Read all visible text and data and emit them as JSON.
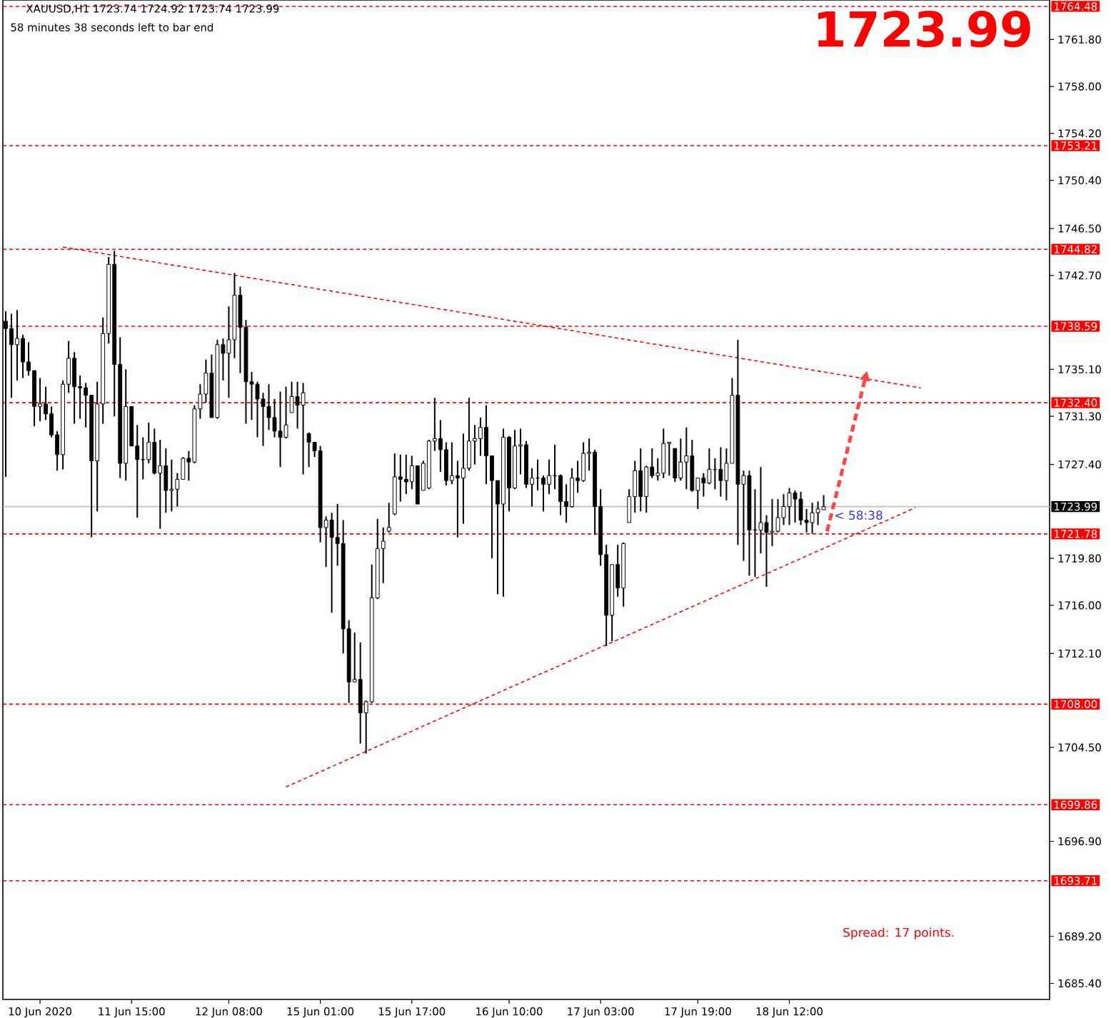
{
  "chart_data": {
    "type": "candlestick",
    "title": "1723.99",
    "subtitle": "XAUUSD,H1  1723.74 1724.92 1723.74 1723.99",
    "annotations": [
      "58 minutes 38 seconds left to bar end",
      {
        "text": "< 58:38",
        "y": 1723.99
      },
      "Spread: 17 points."
    ],
    "categories": [
      null,
      null,
      null,
      null,
      null,
      null,
      "10 Jun 2020",
      null,
      null,
      null,
      null,
      null,
      null,
      null,
      null,
      null,
      null,
      null,
      null,
      null,
      null,
      null,
      "11 Jun 15:00",
      null,
      null,
      null,
      null,
      null,
      null,
      null,
      null,
      null,
      null,
      null,
      null,
      null,
      null,
      null,
      null,
      "12 Jun 08:00",
      null,
      null,
      null,
      null,
      null,
      null,
      null,
      null,
      null,
      null,
      null,
      null,
      null,
      null,
      null,
      "15 Jun 01:00",
      null,
      null,
      null,
      null,
      null,
      null,
      null,
      null,
      null,
      null,
      null,
      null,
      null,
      null,
      null,
      "15 Jun 17:00",
      null,
      null,
      null,
      null,
      null,
      null,
      null,
      null,
      null,
      null,
      null,
      null,
      null,
      null,
      null,
      null,
      "16 Jun 10:00",
      null,
      null,
      null,
      null,
      null,
      null,
      null,
      null,
      null,
      null,
      null,
      null,
      null,
      null,
      null,
      "17 Jun 03:00",
      null,
      null,
      null,
      null,
      null,
      null,
      null,
      null,
      null,
      null,
      null,
      null,
      null,
      null,
      null,
      null,
      "17 Jun 19:00",
      null,
      null,
      null,
      null,
      null,
      null,
      null,
      null,
      null,
      null,
      null,
      null,
      null,
      null,
      null,
      "18 Jun 12:00",
      null,
      null,
      null,
      null,
      null,
      null,
      null,
      null,
      null,
      null,
      null,
      null,
      null,
      null,
      null,
      null,
      null,
      null,
      null,
      null,
      null,
      null,
      null,
      null,
      null,
      null,
      null,
      null,
      null,
      null,
      null,
      null,
      null,
      null,
      null,
      null,
      null,
      null,
      null,
      null,
      null,
      null,
      null,
      null,
      null
    ],
    "color": "#000000",
    "ohlc": [
      [
        1739.0,
        1739.8,
        1726.4,
        1738.4
      ],
      [
        1738.4,
        1739.6,
        1732.8,
        1737.1
      ],
      [
        1737.1,
        1739.9,
        1734.2,
        1737.6
      ],
      [
        1737.6,
        1737.9,
        1734.4,
        1735.7
      ],
      [
        1735.7,
        1737.3,
        1734.6,
        1735.0
      ],
      [
        1735.0,
        1735.0,
        1730.5,
        1732.1
      ],
      [
        1732.1,
        1734.4,
        1730.9,
        1732.3
      ],
      [
        1732.3,
        1733.7,
        1731.0,
        1731.5
      ],
      [
        1731.5,
        1732.1,
        1729.6,
        1729.8
      ],
      [
        1729.8,
        1730.1,
        1726.9,
        1728.2
      ],
      [
        1728.2,
        1734.2,
        1727.0,
        1733.9
      ],
      [
        1733.9,
        1737.4,
        1733.2,
        1736.0
      ],
      [
        1736.0,
        1736.5,
        1730.7,
        1733.7
      ],
      [
        1733.7,
        1734.6,
        1731.1,
        1733.6
      ],
      [
        1733.6,
        1734.0,
        1730.4,
        1733.0
      ],
      [
        1733.0,
        1733.0,
        1721.5,
        1727.7
      ],
      [
        1727.7,
        1734.1,
        1723.6,
        1732.3
      ],
      [
        1732.3,
        1739.3,
        1730.7,
        1738.0
      ],
      [
        1738.0,
        1744.2,
        1737.2,
        1743.6
      ],
      [
        1743.6,
        1744.7,
        1731.3,
        1735.5
      ],
      [
        1735.5,
        1737.7,
        1726.3,
        1727.5
      ],
      [
        1727.5,
        1735.1,
        1726.1,
        1732.1
      ],
      [
        1732.1,
        1732.1,
        1728.9,
        1728.9
      ],
      [
        1728.9,
        1730.6,
        1723.1,
        1727.8
      ],
      [
        1727.8,
        1729.6,
        1726.2,
        1727.8
      ],
      [
        1727.8,
        1730.8,
        1727.5,
        1729.2
      ],
      [
        1729.2,
        1730.3,
        1726.6,
        1726.7
      ],
      [
        1726.7,
        1729.4,
        1722.2,
        1727.3
      ],
      [
        1727.3,
        1728.7,
        1723.5,
        1725.3
      ],
      [
        1725.3,
        1727.8,
        1723.6,
        1725.4
      ],
      [
        1725.4,
        1726.7,
        1724.0,
        1726.2
      ],
      [
        1726.2,
        1728.0,
        1726.2,
        1727.9
      ],
      [
        1727.9,
        1728.5,
        1726.1,
        1727.6
      ],
      [
        1727.6,
        1732.2,
        1727.5,
        1731.9
      ],
      [
        1731.9,
        1733.9,
        1731.1,
        1733.1
      ],
      [
        1733.1,
        1735.9,
        1732.4,
        1734.8
      ],
      [
        1734.8,
        1736.3,
        1731.2,
        1731.2
      ],
      [
        1731.2,
        1737.5,
        1731.1,
        1737.1
      ],
      [
        1737.1,
        1737.6,
        1734.2,
        1736.4
      ],
      [
        1736.4,
        1740.2,
        1732.8,
        1737.5
      ],
      [
        1737.5,
        1742.9,
        1736.0,
        1741.1
      ],
      [
        1741.1,
        1741.8,
        1734.8,
        1738.5
      ],
      [
        1738.5,
        1739.1,
        1730.7,
        1734.1
      ],
      [
        1734.1,
        1734.9,
        1731.0,
        1733.9
      ],
      [
        1733.9,
        1734.1,
        1729.6,
        1732.7
      ],
      [
        1732.7,
        1733.2,
        1728.9,
        1732.1
      ],
      [
        1732.1,
        1733.9,
        1730.2,
        1731.2
      ],
      [
        1731.2,
        1732.7,
        1729.6,
        1730.1
      ],
      [
        1730.1,
        1733.3,
        1727.2,
        1729.6
      ],
      [
        1729.6,
        1733.7,
        1729.5,
        1730.6
      ],
      [
        1731.6,
        1734.1,
        1731.6,
        1732.9
      ],
      [
        1732.9,
        1734.1,
        1730.3,
        1732.2
      ],
      [
        1732.2,
        1734.0,
        1726.6,
        1733.2
      ],
      [
        1729.9,
        1730.0,
        1727.2,
        1729.2
      ],
      [
        1729.2,
        1729.2,
        1728.0,
        1728.5
      ],
      [
        1728.5,
        1728.9,
        1721.1,
        1722.3
      ],
      [
        1722.3,
        1723.2,
        1719.1,
        1722.9
      ],
      [
        1722.9,
        1723.5,
        1715.4,
        1721.5
      ],
      [
        1721.5,
        1724.2,
        1719.2,
        1721.0
      ],
      [
        1721.0,
        1722.9,
        1712.1,
        1714.1
      ],
      [
        1714.1,
        1714.8,
        1708.1,
        1709.8
      ],
      [
        1709.8,
        1713.8,
        1709.8,
        1710.0
      ],
      [
        1710.0,
        1713.0,
        1704.8,
        1707.3
      ],
      [
        1707.3,
        1708.3,
        1704.0,
        1708.2
      ],
      [
        1708.2,
        1719.3,
        1708.1,
        1716.6
      ],
      [
        1716.6,
        1723.0,
        1716.5,
        1720.6
      ],
      [
        1720.6,
        1722.3,
        1717.8,
        1721.2
      ],
      [
        1722.0,
        1724.3,
        1721.9,
        1722.3
      ],
      [
        1723.4,
        1728.3,
        1723.3,
        1726.4
      ],
      [
        1726.4,
        1728.2,
        1724.4,
        1726.2
      ],
      [
        1726.2,
        1728.2,
        1725.0,
        1726.0
      ],
      [
        1726.0,
        1728.1,
        1725.4,
        1727.3
      ],
      [
        1727.3,
        1727.3,
        1724.2,
        1724.2
      ],
      [
        1725.3,
        1727.7,
        1725.3,
        1727.5
      ],
      [
        1725.5,
        1729.4,
        1725.4,
        1729.3
      ],
      [
        1729.3,
        1732.8,
        1728.5,
        1729.5
      ],
      [
        1729.5,
        1731.0,
        1726.8,
        1728.6
      ],
      [
        1728.6,
        1729.2,
        1725.7,
        1726.1
      ],
      [
        1726.1,
        1729.2,
        1725.8,
        1726.5
      ],
      [
        1726.5,
        1727.7,
        1721.5,
        1726.3
      ],
      [
        1726.3,
        1729.9,
        1722.6,
        1727.1
      ],
      [
        1727.1,
        1732.8,
        1726.9,
        1729.3
      ],
      [
        1729.3,
        1730.6,
        1727.4,
        1729.5
      ],
      [
        1729.5,
        1731.2,
        1728.1,
        1730.4
      ],
      [
        1730.4,
        1732.2,
        1725.8,
        1728.1
      ],
      [
        1728.1,
        1728.1,
        1719.8,
        1726.1
      ],
      [
        1726.1,
        1726.1,
        1716.9,
        1724.2
      ],
      [
        1724.2,
        1730.3,
        1716.7,
        1729.6
      ],
      [
        1729.6,
        1729.7,
        1723.6,
        1725.5
      ],
      [
        1725.5,
        1730.2,
        1725.4,
        1728.9
      ],
      [
        1728.9,
        1730.3,
        1726.6,
        1729.0
      ],
      [
        1729.0,
        1729.3,
        1725.5,
        1725.8
      ],
      [
        1725.8,
        1727.1,
        1724.0,
        1726.3
      ],
      [
        1726.3,
        1727.8,
        1725.3,
        1726.3
      ],
      [
        1726.3,
        1726.5,
        1723.6,
        1725.8
      ],
      [
        1725.8,
        1727.8,
        1725.0,
        1726.5
      ],
      [
        1726.5,
        1729.0,
        1725.4,
        1726.5
      ],
      [
        1726.5,
        1726.6,
        1723.3,
        1724.4
      ],
      [
        1724.4,
        1725.8,
        1722.7,
        1724.0
      ],
      [
        1724.0,
        1727.1,
        1723.9,
        1726.3
      ],
      [
        1726.3,
        1727.7,
        1725.1,
        1726.1
      ],
      [
        1726.1,
        1729.2,
        1726.0,
        1728.3
      ],
      [
        1728.3,
        1729.5,
        1726.9,
        1728.4
      ],
      [
        1728.4,
        1728.6,
        1721.7,
        1724.0
      ],
      [
        1724.0,
        1725.4,
        1719.2,
        1720.1
      ],
      [
        1720.1,
        1720.9,
        1712.7,
        1715.2
      ],
      [
        1715.2,
        1719.3,
        1713.1,
        1719.3
      ],
      [
        1719.3,
        1720.9,
        1716.7,
        1717.4
      ],
      [
        1717.4,
        1721.1,
        1715.9,
        1721.0
      ],
      [
        1722.7,
        1725.4,
        1722.7,
        1724.8
      ],
      [
        1724.8,
        1727.7,
        1723.5,
        1726.9
      ],
      [
        1726.9,
        1728.7,
        1723.6,
        1724.8
      ],
      [
        1724.8,
        1727.3,
        1723.5,
        1727.2
      ],
      [
        1727.2,
        1728.7,
        1726.3,
        1726.5
      ],
      [
        1726.5,
        1727.9,
        1726.1,
        1726.7
      ],
      [
        1726.7,
        1730.3,
        1726.3,
        1729.1
      ],
      [
        1729.1,
        1729.2,
        1726.5,
        1729.2
      ],
      [
        1728.7,
        1728.7,
        1726.0,
        1726.3
      ],
      [
        1726.3,
        1729.5,
        1726.1,
        1727.6
      ],
      [
        1727.6,
        1730.4,
        1725.4,
        1728.1
      ],
      [
        1728.1,
        1729.4,
        1725.2,
        1725.3
      ],
      [
        1725.3,
        1726.3,
        1723.8,
        1726.3
      ],
      [
        1726.3,
        1726.7,
        1724.8,
        1725.9
      ],
      [
        1725.9,
        1728.7,
        1725.8,
        1727.0
      ],
      [
        1727.0,
        1727.9,
        1725.4,
        1727.0
      ],
      [
        1727.0,
        1728.8,
        1724.8,
        1726.1
      ],
      [
        1726.1,
        1728.7,
        1724.5,
        1727.5
      ],
      [
        1727.5,
        1734.4,
        1727.5,
        1733.0
      ],
      [
        1733.0,
        1737.5,
        1720.9,
        1725.8
      ],
      [
        1725.8,
        1726.9,
        1719.6,
        1726.5
      ],
      [
        1726.5,
        1726.9,
        1718.4,
        1722.1
      ],
      [
        1722.1,
        1725.4,
        1718.3,
        1722.1
      ],
      [
        1722.1,
        1727.2,
        1720.2,
        1722.7
      ],
      [
        1722.7,
        1723.3,
        1717.5,
        1721.9
      ],
      [
        1721.9,
        1724.6,
        1720.8,
        1722.0
      ],
      [
        1722.0,
        1724.6,
        1721.9,
        1723.1
      ],
      [
        1723.1,
        1725.0,
        1722.5,
        1724.0
      ],
      [
        1724.0,
        1725.5,
        1722.5,
        1725.1
      ],
      [
        1725.1,
        1725.3,
        1722.7,
        1724.6
      ],
      [
        1724.6,
        1725.2,
        1722.5,
        1722.9
      ],
      [
        1722.9,
        1723.8,
        1721.9,
        1722.7
      ],
      [
        1722.7,
        1724.3,
        1721.8,
        1723.5
      ],
      [
        1723.5,
        1724.4,
        1722.5,
        1723.8
      ],
      [
        1723.74,
        1724.92,
        1723.74,
        1723.99
      ],
      null,
      null,
      null,
      null,
      null,
      null,
      null,
      null,
      null,
      null,
      null,
      null,
      null,
      null,
      null,
      null,
      null,
      null,
      null,
      null,
      null,
      null,
      null,
      null,
      null,
      null,
      null,
      null,
      null,
      null,
      null,
      null,
      null,
      null,
      null,
      null,
      null,
      null,
      null
    ],
    "series": [
      {
        "type": "line",
        "color": "#ff0000",
        "line_style": "dashed",
        "values": [
          null,
          null,
          null,
          null,
          null,
          null,
          null,
          null,
          null,
          null,
          1745.0,
          null,
          null,
          null,
          null,
          null,
          null,
          null,
          null,
          null,
          null,
          null,
          null,
          null,
          null,
          null,
          null,
          null,
          null,
          null,
          null,
          null,
          null,
          null,
          null,
          null,
          null,
          null,
          null,
          null,
          null,
          null,
          null,
          null,
          null,
          null,
          null,
          null,
          null,
          null,
          null,
          null,
          null,
          null,
          null,
          null,
          null,
          null,
          null,
          null,
          null,
          null,
          null,
          null,
          null,
          null,
          null,
          null,
          null,
          null,
          null,
          null,
          null,
          null,
          null,
          null,
          null,
          null,
          null,
          null,
          null,
          null,
          null,
          null,
          null,
          null,
          null,
          null,
          null,
          null,
          null,
          null,
          null,
          null,
          null,
          null,
          null,
          null,
          null,
          null,
          null,
          null,
          null,
          null,
          null,
          null,
          null,
          null,
          null,
          null,
          null,
          null,
          null,
          null,
          null,
          null,
          null,
          null,
          null,
          null,
          null,
          null,
          null,
          null,
          null,
          null,
          null,
          null,
          null,
          null,
          null,
          null,
          null,
          null,
          null,
          null,
          null,
          null,
          null,
          null,
          null,
          null,
          null,
          null,
          null,
          null,
          null,
          null,
          null,
          null,
          null,
          null,
          null,
          null,
          null,
          null,
          null,
          null,
          null,
          null,
          1733.6,
          null,
          null,
          null,
          null,
          null,
          null,
          null,
          null,
          null,
          null,
          null,
          null,
          null,
          null,
          null,
          null,
          null,
          null,
          null,
          null,
          null,
          null
        ]
      },
      {
        "type": "line",
        "color": "#ff0000",
        "line_style": "dashed",
        "values": [
          null,
          null,
          null,
          null,
          null,
          null,
          null,
          null,
          null,
          null,
          null,
          null,
          null,
          null,
          null,
          null,
          null,
          null,
          null,
          null,
          null,
          null,
          null,
          null,
          null,
          null,
          null,
          null,
          null,
          null,
          null,
          null,
          null,
          null,
          null,
          null,
          null,
          null,
          null,
          null,
          null,
          null,
          null,
          null,
          null,
          null,
          null,
          null,
          null,
          1701.3,
          null,
          null,
          null,
          null,
          null,
          null,
          null,
          null,
          null,
          null,
          null,
          null,
          null,
          null,
          null,
          null,
          null,
          null,
          null,
          null,
          null,
          null,
          null,
          null,
          null,
          null,
          null,
          null,
          null,
          null,
          null,
          null,
          null,
          null,
          null,
          null,
          null,
          null,
          null,
          null,
          null,
          null,
          null,
          null,
          null,
          null,
          null,
          null,
          null,
          null,
          null,
          null,
          null,
          null,
          null,
          null,
          null,
          null,
          null,
          null,
          null,
          null,
          null,
          null,
          null,
          null,
          null,
          null,
          null,
          null,
          null,
          null,
          null,
          null,
          null,
          null,
          null,
          null,
          null,
          null,
          null,
          null,
          null,
          null,
          null,
          null,
          null,
          null,
          null,
          null,
          null,
          null,
          null,
          null,
          null,
          null,
          null,
          null,
          null,
          null,
          null,
          null,
          null,
          null,
          null,
          null,
          null,
          null,
          null,
          1723.9,
          null,
          null,
          null,
          null,
          null,
          null,
          null,
          null,
          null,
          null,
          null,
          null,
          null,
          null,
          null,
          null,
          null,
          null,
          null,
          null,
          null,
          null,
          null
        ]
      }
    ],
    "ylim": [
      1684.1,
      1765.0
    ],
    "yticks": [
      {
        "value": 1685.4,
        "label": "1685.40"
      },
      {
        "value": 1689.2,
        "label": "1689.20"
      },
      {
        "value": 1696.9,
        "label": "1696.90"
      },
      {
        "value": 1704.5,
        "label": "1704.50"
      },
      {
        "value": 1712.1,
        "label": "1712.10"
      },
      {
        "value": 1716.0,
        "label": "1716.00"
      },
      {
        "value": 1719.8,
        "label": "1719.80"
      },
      {
        "value": 1727.4,
        "label": "1727.40"
      },
      {
        "value": 1731.3,
        "label": "1731.30"
      },
      {
        "value": 1735.1,
        "label": "1735.10"
      },
      {
        "value": 1742.7,
        "label": "1742.70"
      },
      {
        "value": 1746.5,
        "label": "1746.50"
      },
      {
        "value": 1750.4,
        "label": "1750.40"
      },
      {
        "value": 1754.2,
        "label": "1754.20"
      },
      {
        "value": 1758.0,
        "label": "1758.00"
      },
      {
        "value": 1761.8,
        "label": "1761.80"
      }
    ],
    "ref_lines": [
      {
        "axis": "y",
        "value": 1764.48,
        "label": "1764.48",
        "color": "#ff0000",
        "line_style": "dashed"
      },
      {
        "axis": "y",
        "value": 1753.21,
        "label": "1753.21",
        "color": "#ff0000",
        "line_style": "dashed"
      },
      {
        "axis": "y",
        "value": 1744.82,
        "label": "1744.82",
        "color": "#ff0000",
        "line_style": "dashed"
      },
      {
        "axis": "y",
        "value": 1738.59,
        "label": "1738.59",
        "color": "#ff0000",
        "line_style": "dashed"
      },
      {
        "axis": "y",
        "value": 1732.4,
        "label": "1732.40",
        "color": "#ff0000",
        "line_style": "dashed"
      },
      {
        "axis": "y",
        "value": 1723.99,
        "label": "1723.99",
        "color": "#c0c0c0",
        "line_style": "solid"
      },
      {
        "axis": "y",
        "value": 1721.78,
        "label": "1721.78",
        "color": "#ff0000",
        "line_style": "dashed"
      },
      {
        "axis": "y",
        "value": 1708.0,
        "label": "1708.00",
        "color": "#ff0000",
        "line_style": "dashed"
      },
      {
        "axis": "y",
        "value": 1699.86,
        "label": "1699.86",
        "color": "#ff0000",
        "line_style": "dashed"
      },
      {
        "axis": "y",
        "value": 1693.71,
        "label": "1693.71",
        "color": "#ff0000",
        "line_style": "dashed"
      }
    ]
  }
}
